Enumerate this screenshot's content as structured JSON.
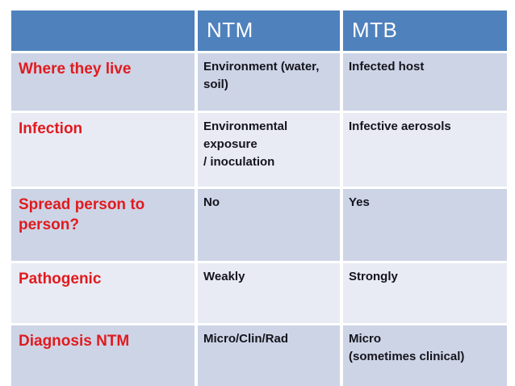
{
  "colors": {
    "header_bg": "#4F81BD",
    "header_text": "#FFFFFF",
    "band_dark": "#CDD4E6",
    "band_light": "#E9EBF4",
    "label_red": "#E01B1E",
    "body_text": "#14141C",
    "gridline": "#FFFFFF"
  },
  "table": {
    "columns": [
      "",
      "NTM",
      "MTB"
    ],
    "rows": [
      {
        "label": "Where they live",
        "ntm": "Environment (water, soil)",
        "mtb": "Infected host"
      },
      {
        "label": "Infection",
        "ntm": "Environmental exposure\n/ inoculation",
        "mtb": "Infective aerosols"
      },
      {
        "label": "Spread person to person?",
        "ntm": "No",
        "mtb": "Yes"
      },
      {
        "label": "Pathogenic",
        "ntm": "Weakly",
        "mtb": "Strongly"
      },
      {
        "label": "Diagnosis NTM",
        "ntm": "Micro/Clin/Rad",
        "mtb": "Micro\n(sometimes clinical)"
      }
    ]
  }
}
